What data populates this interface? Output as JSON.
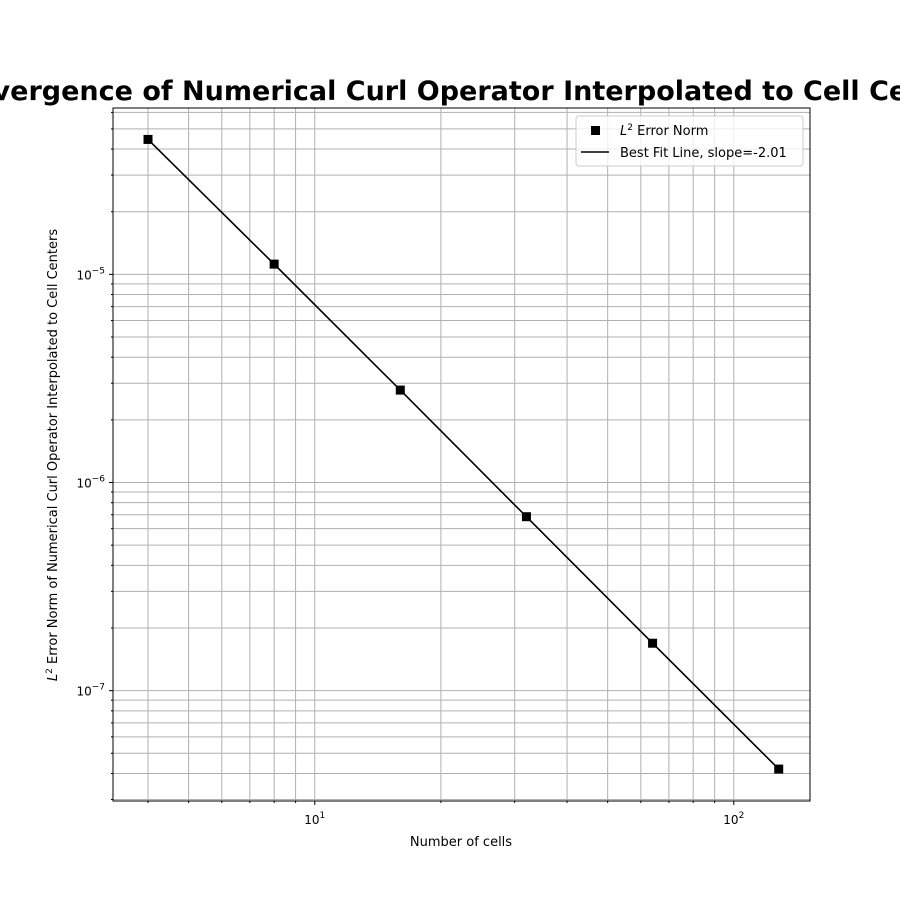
{
  "chart_data": {
    "type": "line",
    "title": "Convergence of Numerical Curl Operator Interpolated to Cell Centers",
    "xlabel": "Number of cells",
    "ylabel_prefix": "L",
    "ylabel_sup": "2",
    "ylabel_rest": " Error Norm of Numerical Curl Operator Interpolated to Cell Centers",
    "xscale": "log",
    "yscale": "log",
    "xlim": [
      3.3,
      152
    ],
    "ylim": [
      2.95e-08,
      6.3e-05
    ],
    "grid": "major and minor",
    "legend_position": "top-right",
    "x_tick_labels": [
      {
        "value": 10,
        "base": "10",
        "exp": "1"
      },
      {
        "value": 100,
        "base": "10",
        "exp": "2"
      }
    ],
    "y_tick_labels": [
      {
        "value": 1e-05,
        "base": "10",
        "exp": "−5"
      },
      {
        "value": 1e-06,
        "base": "10",
        "exp": "−6"
      },
      {
        "value": 1e-07,
        "base": "10",
        "exp": "−7"
      }
    ],
    "series": [
      {
        "name_prefix": "L",
        "name_sup": "2",
        "name_rest": " Error Norm",
        "kind": "markers",
        "marker": "square",
        "color": "#000000",
        "x": [
          4,
          8,
          16,
          32,
          64,
          128
        ],
        "y": [
          4.45e-05,
          1.12e-05,
          2.78e-06,
          6.85e-07,
          1.69e-07,
          4.2e-08
        ]
      },
      {
        "name": "Best Fit Line, slope=-2.01",
        "kind": "line",
        "color": "#000000",
        "x": [
          4,
          8,
          16,
          32,
          64,
          128
        ],
        "y": [
          4.45e-05,
          1.12e-05,
          2.78e-06,
          6.85e-07,
          1.69e-07,
          4.2e-08
        ]
      }
    ]
  }
}
